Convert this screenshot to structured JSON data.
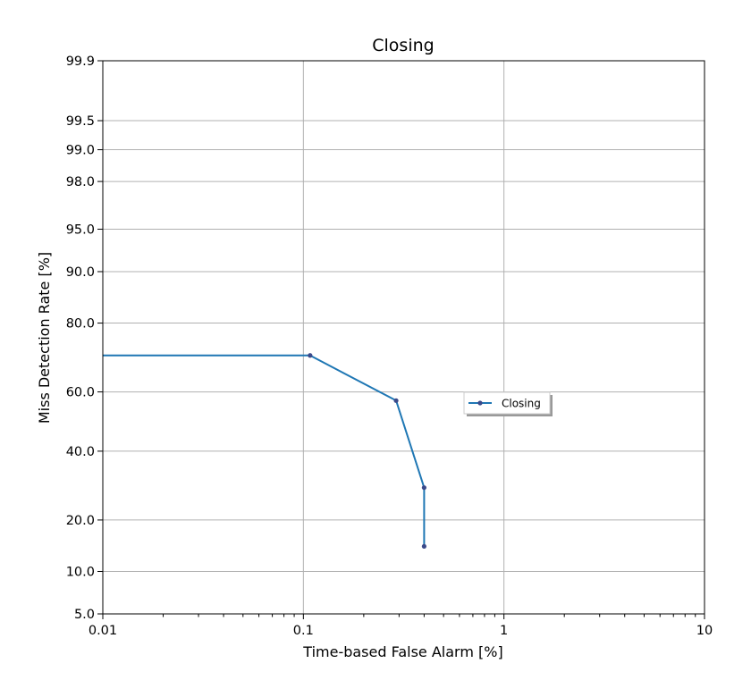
{
  "chart_data": {
    "type": "line",
    "title": "Closing",
    "xlabel": "Time-based False Alarm [%]",
    "ylabel": "Miss Detection Rate [%]",
    "xscale": "log",
    "yscale": "normal-deviate (probit)",
    "xlim": [
      0.01,
      10
    ],
    "ylim": [
      5.0,
      99.9
    ],
    "xticks": [
      0.01,
      0.1,
      1,
      10
    ],
    "xtick_labels": [
      "0.01",
      "0.1",
      "1",
      "10"
    ],
    "yticks": [
      5.0,
      10.0,
      20.0,
      40.0,
      60.0,
      80.0,
      90.0,
      95.0,
      98.0,
      99.0,
      99.5,
      99.9
    ],
    "ytick_labels": [
      "5.0",
      "10.0",
      "20.0",
      "40.0",
      "60.0",
      "80.0",
      "90.0",
      "95.0",
      "98.0",
      "99.0",
      "99.5",
      "99.9"
    ],
    "grid": true,
    "legend": "center-right",
    "series": [
      {
        "name": "Closing",
        "color": "#1f77b4",
        "marker_color": "#3b4a8a",
        "x": [
          0.0,
          0.108,
          0.29,
          0.4,
          0.4
        ],
        "y": [
          71.4,
          71.4,
          57.1,
          28.6,
          14.3
        ]
      }
    ]
  }
}
